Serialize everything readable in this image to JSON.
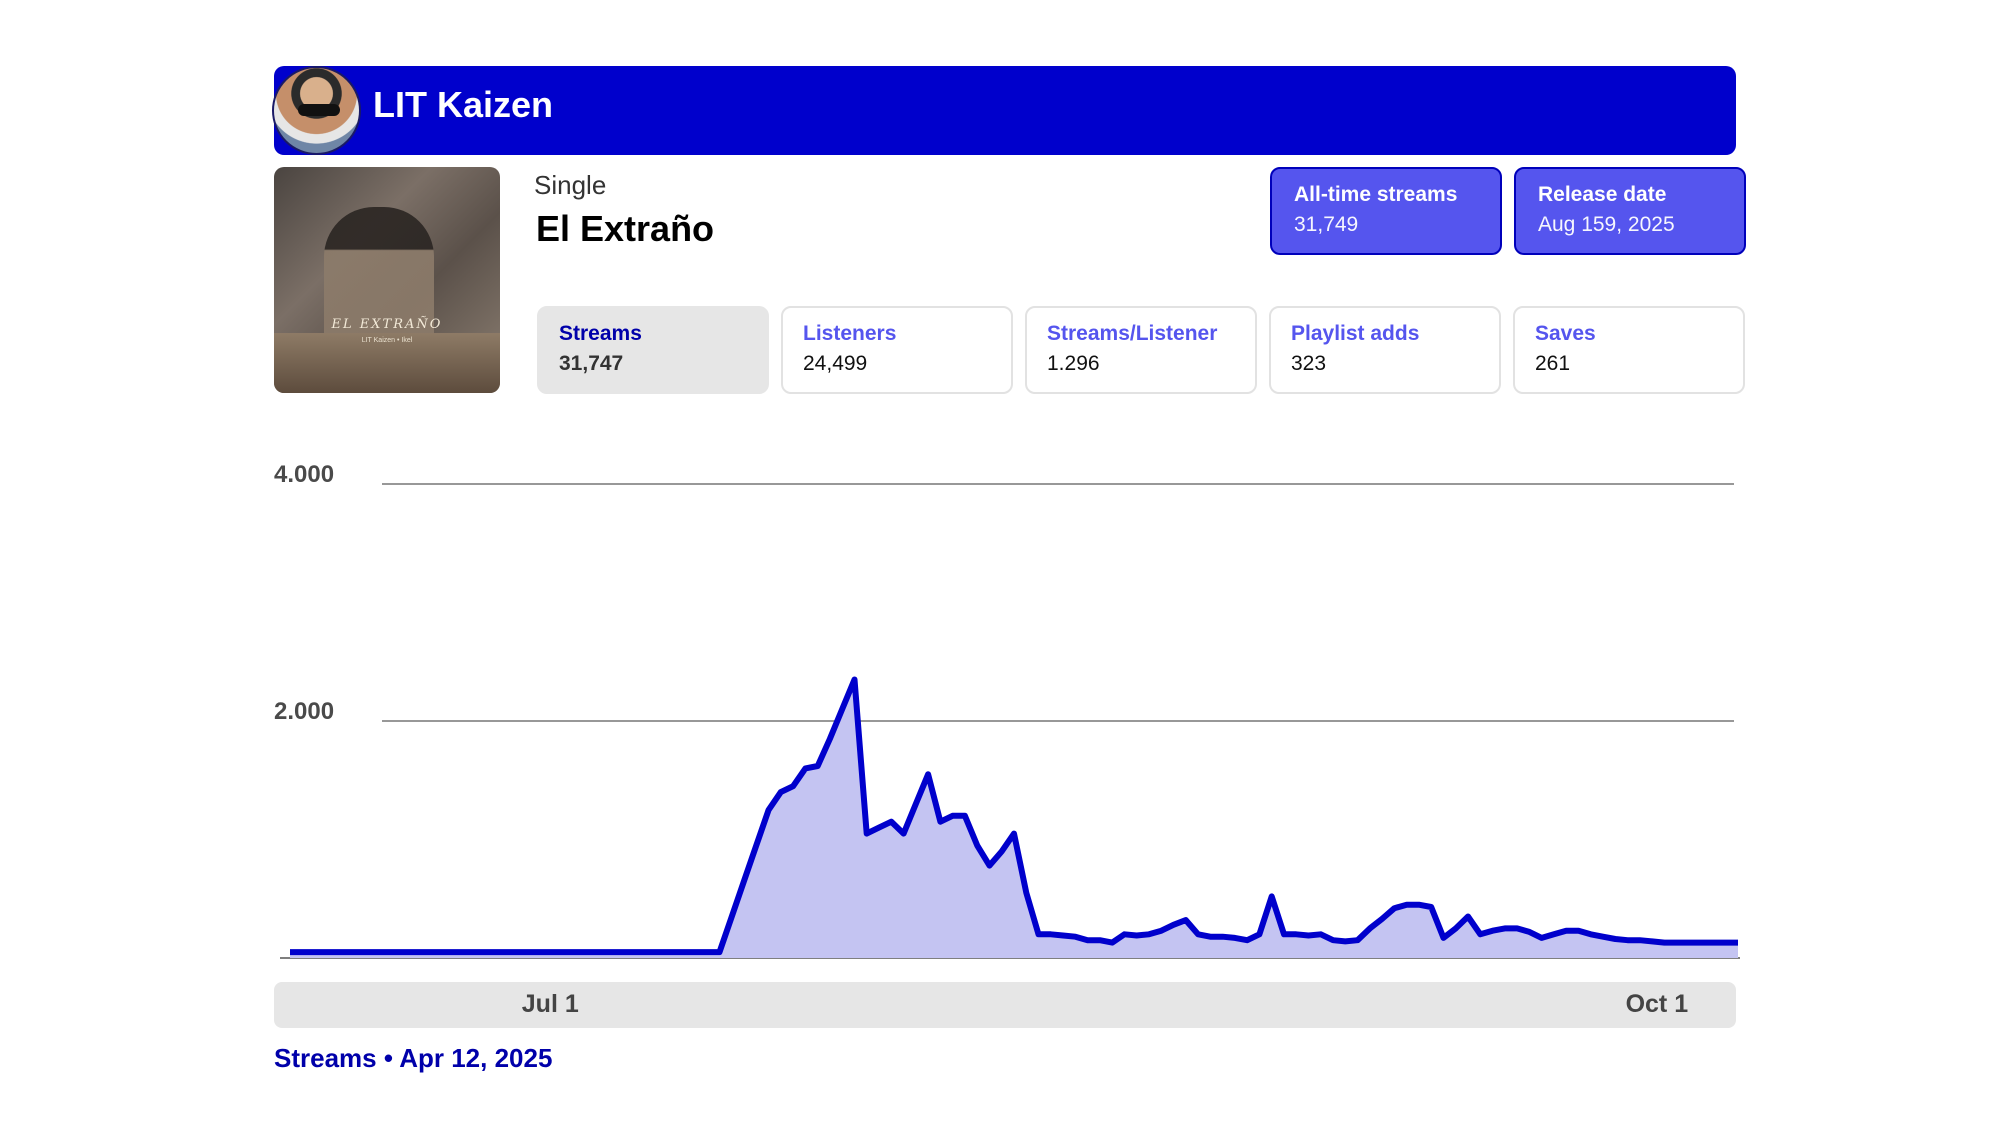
{
  "artist": {
    "name": "LIT Kaizen",
    "avatar_icon": "artist-avatar"
  },
  "release": {
    "type": "Single",
    "title": "El Extraño",
    "cover_text": "EL EXTRAÑO",
    "cover_subtext": "LIT Kaizen • Ikel"
  },
  "summary": {
    "all_time_streams_label": "All-time streams",
    "all_time_streams_value": "31,749",
    "release_date_label": "Release date",
    "release_date_value": "Aug 159, 2025"
  },
  "metrics": [
    {
      "label": "Streams",
      "value": "31,747",
      "active": true
    },
    {
      "label": "Listeners",
      "value": "24,499",
      "active": false
    },
    {
      "label": "Streams/Listener",
      "value": "1.296",
      "active": false
    },
    {
      "label": "Playlist adds",
      "value": "323",
      "active": false
    },
    {
      "label": "Saves",
      "value": "261",
      "active": false
    }
  ],
  "colors": {
    "accent": "#0000cc",
    "pill": "#5555ee",
    "area_fill": "#c4c4f2",
    "line": "#0000cc"
  },
  "footer": {
    "text": "Streams • Apr 12, 2025"
  },
  "chart_data": {
    "type": "area",
    "ylim": [
      0,
      4000
    ],
    "yticks": [
      "4.000",
      "2.000"
    ],
    "ytick_values": [
      4000,
      2000
    ],
    "xtick_labels": [
      "Jul 1",
      "Oct 1"
    ],
    "xtick_positions": [
      0.19,
      0.945
    ],
    "series": [
      {
        "values": [
          50,
          50,
          50,
          50,
          50,
          50,
          50,
          50,
          50,
          50,
          50,
          50,
          50,
          50,
          50,
          50,
          50,
          50,
          50,
          50,
          50,
          50,
          50,
          50,
          50,
          50,
          50,
          50,
          50,
          50,
          50,
          50,
          50,
          50,
          50,
          50,
          350,
          650,
          950,
          1250,
          1400,
          1450,
          1600,
          1620,
          1850,
          2100,
          2350,
          1050,
          1100,
          1150,
          1050,
          1300,
          1550,
          1150,
          1200,
          1200,
          950,
          780,
          900,
          1050,
          550,
          200,
          200,
          190,
          180,
          150,
          150,
          130,
          200,
          190,
          200,
          230,
          280,
          320,
          200,
          180,
          180,
          170,
          150,
          200,
          520,
          200,
          200,
          190,
          200,
          150,
          140,
          150,
          250,
          330,
          420,
          450,
          450,
          430,
          170,
          250,
          350,
          200,
          230,
          250,
          250,
          220,
          170,
          200,
          230,
          230,
          200,
          180,
          160,
          150,
          150,
          140,
          130,
          130,
          130,
          130,
          130,
          130,
          130
        ]
      }
    ]
  }
}
